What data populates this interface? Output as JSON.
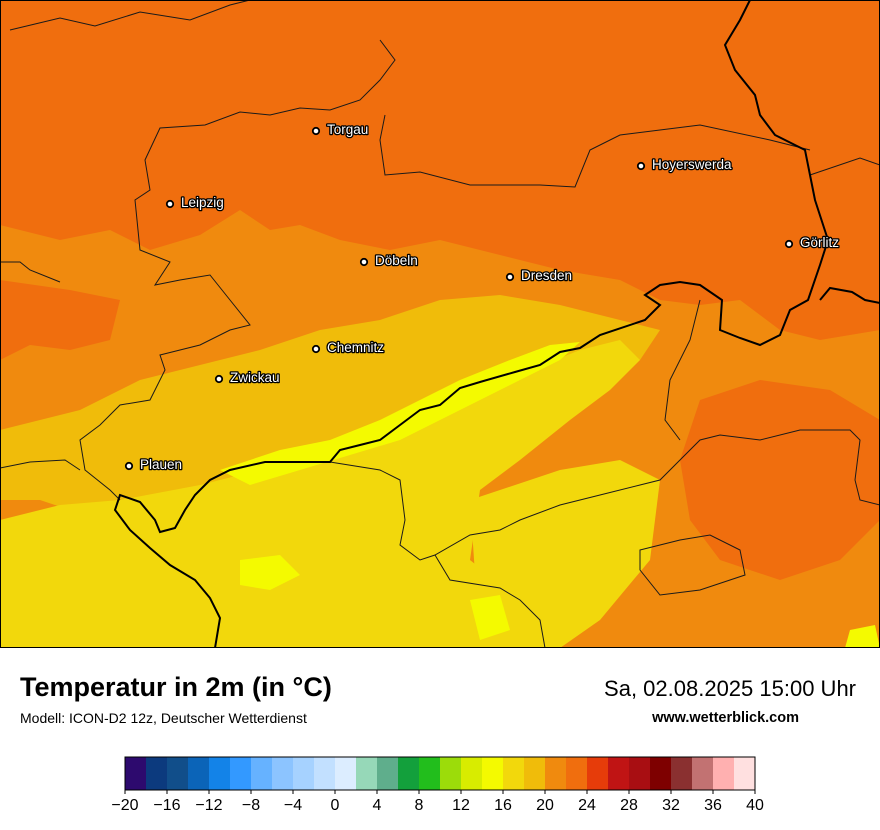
{
  "title": "Temperatur in 2m (in °C)",
  "subtitle": "Modell: ICON-D2 12z, Deutscher Wetterdienst",
  "datetime": "Sa, 02.08.2025 15:00 Uhr",
  "website": "www.wetterblick.com",
  "cities": [
    {
      "name": "Torgau"
    },
    {
      "name": "Leipzig"
    },
    {
      "name": "Hoyerswerda"
    },
    {
      "name": "Görlitz"
    },
    {
      "name": "Döbeln"
    },
    {
      "name": "Dresden"
    },
    {
      "name": "Chemnitz"
    },
    {
      "name": "Zwickau"
    },
    {
      "name": "Plauen"
    }
  ],
  "legend": {
    "min": -20,
    "max": 40,
    "step": 2,
    "tick_labels": [
      "−20",
      "−16",
      "−12",
      "−8",
      "−4",
      "0",
      "4",
      "8",
      "12",
      "16",
      "20",
      "24",
      "28",
      "32",
      "36",
      "40"
    ],
    "colors": [
      "#2d0a6e",
      "#0c3a7e",
      "#114e8a",
      "#0b64b8",
      "#1383e8",
      "#3399ff",
      "#66b2ff",
      "#8cc4ff",
      "#a6d2ff",
      "#c2e0ff",
      "#dcedff",
      "#96d8b8",
      "#5fae8c",
      "#13a03c",
      "#22be1c",
      "#9cdc0a",
      "#d8ec00",
      "#f4fa00",
      "#f2d80c",
      "#f0bc0a",
      "#f08a0e",
      "#f06e0e",
      "#e63c0a",
      "#c01414",
      "#a80e12",
      "#7e0000",
      "#8a3030",
      "#c27272",
      "#ffb0b0",
      "#ffe0e0"
    ]
  },
  "map_colors": {
    "t28": "#f06e0e",
    "t26": "#f08a0e",
    "t24": "#f0bc0a",
    "t22": "#f2d80c",
    "t20": "#f4fa00"
  }
}
